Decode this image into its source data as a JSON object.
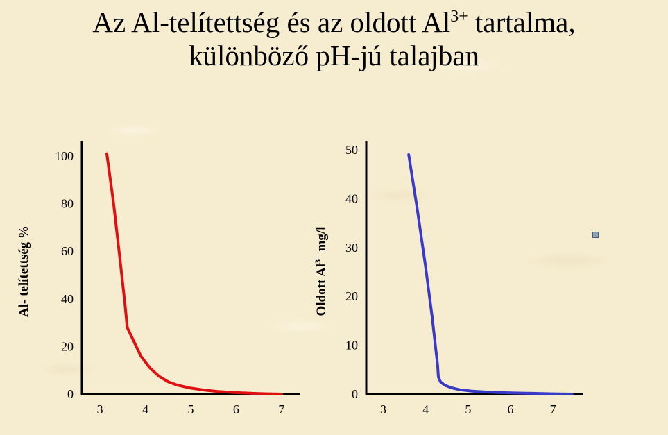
{
  "title": {
    "part1": "Az Al-telítettség és az oldott Al",
    "sup": "3+",
    "part2": " tartalma,",
    "line2": "különböző pH-jú talajban"
  },
  "left_ylabel": "Al- telítettség %",
  "right_ylabel": {
    "before": "Oldott Al",
    "sup": "3+",
    "after": " mg/l"
  },
  "colors": {
    "left_series": "#e01010",
    "right_series": "#3a3ac8",
    "axis": "#000000"
  },
  "chart_data": [
    {
      "type": "line",
      "title": "",
      "xlabel": "",
      "ylabel": "Al- telítettség %",
      "xlim": [
        2.6,
        7.4
      ],
      "ylim": [
        0,
        100
      ],
      "x_ticks": [
        3,
        4,
        5,
        6,
        7
      ],
      "y_ticks": [
        0,
        20,
        40,
        60,
        80,
        100
      ],
      "grid": false,
      "series": [
        {
          "x": [
            3.15,
            3.3,
            3.45,
            3.55,
            3.6,
            3.75,
            3.9,
            4.1,
            4.3,
            4.5,
            4.7,
            5.0,
            5.3,
            5.6,
            6.0,
            6.5,
            7.0
          ],
          "values": [
            101,
            80,
            55,
            38,
            28,
            22,
            16,
            11,
            7.5,
            5.2,
            3.8,
            2.5,
            1.7,
            1.1,
            0.6,
            0.2,
            0
          ]
        }
      ]
    },
    {
      "type": "line",
      "title": "",
      "xlabel": "",
      "ylabel": "Oldott Al3+ mg/l",
      "xlim": [
        2.6,
        7.7
      ],
      "ylim": [
        0,
        50
      ],
      "x_ticks": [
        3,
        4,
        5,
        6,
        7
      ],
      "y_ticks": [
        0,
        10,
        20,
        30,
        40,
        50
      ],
      "grid": false,
      "series": [
        {
          "x": [
            3.6,
            3.8,
            4.0,
            4.15,
            4.28,
            4.3,
            4.35,
            4.45,
            4.6,
            4.8,
            5.1,
            5.5,
            6.0,
            6.5,
            7.0,
            7.45
          ],
          "values": [
            49,
            38,
            26,
            16,
            6,
            3.5,
            2.5,
            1.8,
            1.3,
            0.9,
            0.6,
            0.4,
            0.25,
            0.15,
            0.05,
            0
          ]
        }
      ]
    }
  ]
}
